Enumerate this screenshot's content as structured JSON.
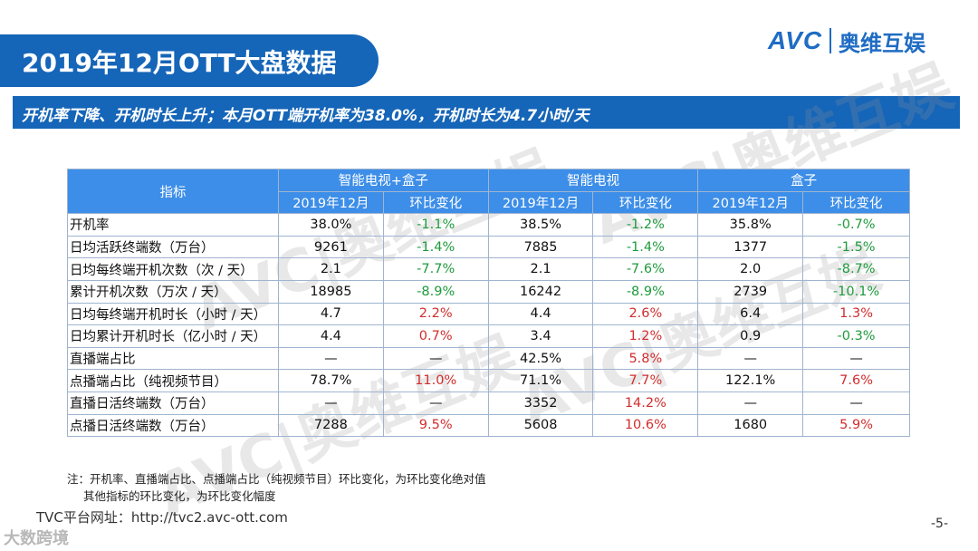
{
  "title": "2019年12月OTT大盘数据",
  "logo": {
    "avc": "AVC",
    "cn": "奥维互娱"
  },
  "subtitle": "开机率下降、开机时长上升；本月OTT端开机率为38.0%，开机时长为4.7小时/天",
  "watermark_text": "AVC|奥维互娱",
  "table": {
    "header_indicator": "指标",
    "groups": [
      "智能电视+盒子",
      "智能电视",
      "盒子"
    ],
    "sub_headers": [
      "2019年12月",
      "环比变化",
      "2019年12月",
      "环比变化",
      "2019年12月",
      "环比变化"
    ],
    "rows": [
      {
        "label": "开机率",
        "cells": [
          "38.0%",
          "-1.1%",
          "38.5%",
          "-1.2%",
          "35.8%",
          "-0.7%"
        ]
      },
      {
        "label": "日均活跃终端数（万台）",
        "cells": [
          "9261",
          "-1.4%",
          "7885",
          "-1.4%",
          "1377",
          "-1.5%"
        ]
      },
      {
        "label": "日均每终端开机次数（次 / 天）",
        "cells": [
          "2.1",
          "-7.7%",
          "2.1",
          "-7.6%",
          "2.0",
          "-8.7%"
        ]
      },
      {
        "label": "累计开机次数（万次 / 天）",
        "cells": [
          "18985",
          "-8.9%",
          "16242",
          "-8.9%",
          "2739",
          "-10.1%"
        ]
      },
      {
        "label": "日均每终端开机时长（小时 / 天）",
        "cells": [
          "4.7",
          "2.2%",
          "4.4",
          "2.6%",
          "6.4",
          "1.3%"
        ]
      },
      {
        "label": "日均累计开机时长（亿小时 / 天）",
        "cells": [
          "4.4",
          "0.7%",
          "3.4",
          "1.2%",
          "0.9",
          "-0.3%"
        ]
      },
      {
        "label": "直播端占比",
        "cells": [
          "—",
          "—",
          "42.5%",
          "5.8%",
          "—",
          "—"
        ]
      },
      {
        "label": "点播端占比（纯视频节目）",
        "cells": [
          "78.7%",
          "11.0%",
          "71.1%",
          "7.7%",
          "122.1%",
          "7.6%"
        ]
      },
      {
        "label": "直播日活终端数（万台）",
        "cells": [
          "—",
          "—",
          "3352",
          "14.2%",
          "—",
          "—"
        ]
      },
      {
        "label": "点播日活终端数（万台）",
        "cells": [
          "7288",
          "9.5%",
          "5608",
          "10.6%",
          "1680",
          "5.9%"
        ]
      }
    ]
  },
  "note_line1": "注：开机率、直播端占比、点播端占比（纯视频节目）环比变化，为环比变化绝对值",
  "note_line2": "其他指标的环比变化，为环比变化幅度",
  "url": "TVC平台网址：http://tvc2.avc-ott.com",
  "page_number": "-5-",
  "corner_watermark": "大数跨境",
  "colors": {
    "brand_blue": "#1565b8",
    "header_blue": "#3d8ee8",
    "negative": "#1e9b3c",
    "positive": "#d22d2d"
  }
}
